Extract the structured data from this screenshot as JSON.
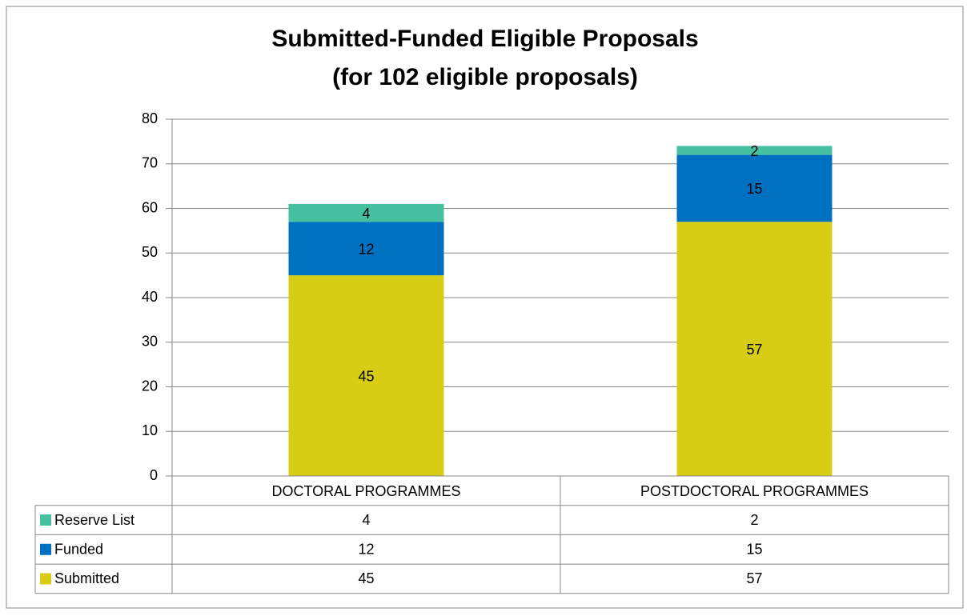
{
  "chart_data": {
    "type": "stacked_bar",
    "title": "Submitted-Funded Eligible Proposals",
    "subtitle": "(for 102 eligible proposals)",
    "categories": [
      "DOCTORAL PROGRAMMES",
      "POSTDOCTORAL PROGRAMMES"
    ],
    "series": [
      {
        "name": "Submitted",
        "color": "#d7cd14",
        "values": [
          45,
          57
        ]
      },
      {
        "name": "Funded",
        "color": "#0070c0",
        "values": [
          12,
          15
        ]
      },
      {
        "name": "Reserve List",
        "color": "#45c0a0",
        "values": [
          4,
          2
        ]
      }
    ],
    "ylim": [
      0,
      80
    ],
    "yticks": [
      0,
      10,
      20,
      30,
      40,
      50,
      60,
      70,
      80
    ],
    "grid": true,
    "data_table": true
  }
}
